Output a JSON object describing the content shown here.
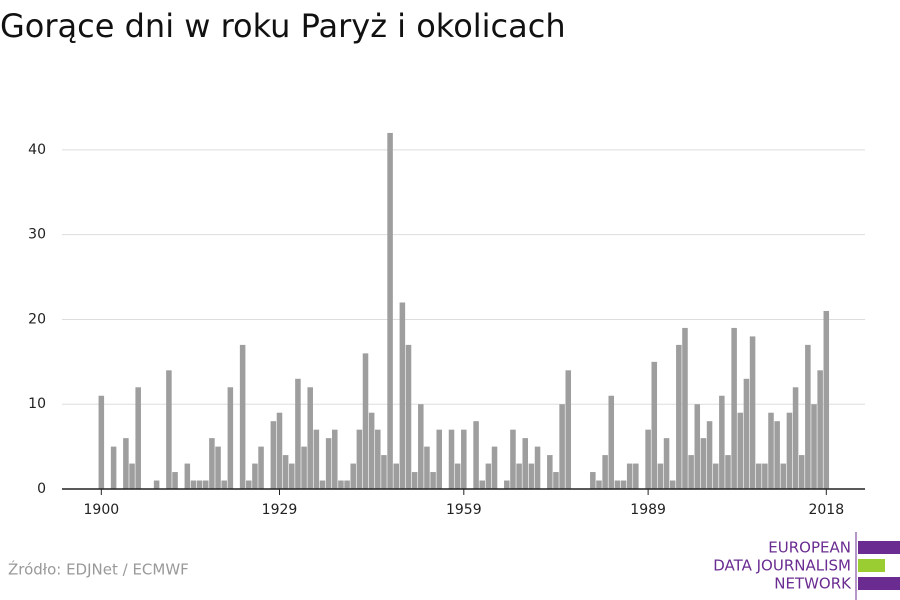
{
  "chart_data": {
    "type": "bar",
    "title": "Gorące dni w roku Paryż i okolicach",
    "x": [
      1900,
      1901,
      1902,
      1903,
      1904,
      1905,
      1906,
      1907,
      1908,
      1909,
      1910,
      1911,
      1912,
      1913,
      1914,
      1915,
      1916,
      1917,
      1918,
      1919,
      1920,
      1921,
      1922,
      1923,
      1924,
      1925,
      1926,
      1927,
      1928,
      1929,
      1930,
      1931,
      1932,
      1933,
      1934,
      1935,
      1936,
      1937,
      1938,
      1939,
      1940,
      1941,
      1942,
      1943,
      1944,
      1945,
      1946,
      1947,
      1948,
      1949,
      1950,
      1951,
      1952,
      1953,
      1954,
      1955,
      1956,
      1957,
      1958,
      1959,
      1960,
      1961,
      1962,
      1963,
      1964,
      1965,
      1966,
      1967,
      1968,
      1969,
      1970,
      1971,
      1972,
      1973,
      1974,
      1975,
      1976,
      1977,
      1978,
      1979,
      1980,
      1981,
      1982,
      1983,
      1984,
      1985,
      1986,
      1987,
      1988,
      1989,
      1990,
      1991,
      1992,
      1993,
      1994,
      1995,
      1996,
      1997,
      1998,
      1999,
      2000,
      2001,
      2002,
      2003,
      2004,
      2005,
      2006,
      2007,
      2008,
      2009,
      2010,
      2011,
      2012,
      2013,
      2014,
      2015,
      2016,
      2017,
      2018
    ],
    "values": [
      11,
      0,
      5,
      0,
      6,
      3,
      12,
      0,
      0,
      1,
      0,
      14,
      2,
      0,
      3,
      1,
      1,
      1,
      6,
      5,
      1,
      12,
      0,
      17,
      1,
      3,
      5,
      0,
      8,
      9,
      4,
      3,
      13,
      5,
      12,
      7,
      1,
      6,
      7,
      1,
      1,
      3,
      7,
      16,
      9,
      7,
      4,
      42,
      3,
      22,
      17,
      2,
      10,
      5,
      2,
      7,
      0,
      7,
      3,
      7,
      0,
      8,
      1,
      3,
      5,
      0,
      1,
      7,
      3,
      6,
      3,
      5,
      0,
      4,
      2,
      10,
      14,
      0,
      0,
      0,
      2,
      1,
      4,
      11,
      1,
      1,
      3,
      3,
      0,
      7,
      15,
      3,
      6,
      1,
      17,
      19,
      4,
      10,
      6,
      8,
      3,
      11,
      4,
      19,
      9,
      13,
      18,
      3,
      3,
      9,
      8,
      3,
      9,
      12,
      4,
      17,
      10,
      14,
      21
    ],
    "color": "#9e9e9e",
    "xlim": [
      1893.6,
      2024.3
    ],
    "xticks": [
      1900,
      1929,
      1959,
      1989,
      2018
    ],
    "ylim": [
      0,
      44
    ],
    "yticks": [
      0,
      10,
      20,
      30,
      40
    ],
    "grid": true,
    "source": "Źródło: EDJNet / ECMWF",
    "logo": [
      "EUROPEAN",
      "DATA JOURNALISM",
      "NETWORK"
    ]
  }
}
